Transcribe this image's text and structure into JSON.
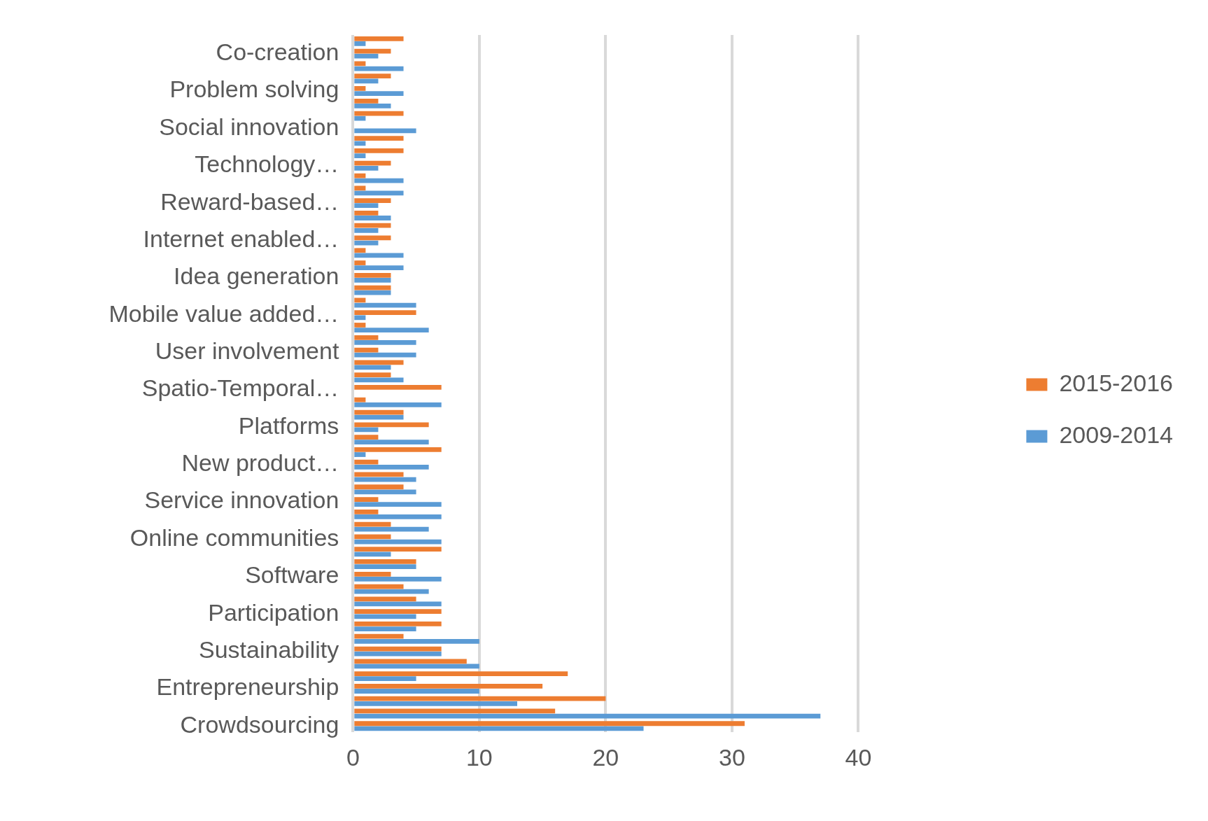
{
  "chart_data": {
    "type": "bar",
    "orientation": "horizontal",
    "categories": [
      null,
      "Co-creation",
      null,
      null,
      "Problem solving",
      null,
      null,
      "Social innovation",
      null,
      null,
      "Technology…",
      null,
      null,
      "Reward-based…",
      null,
      null,
      "Internet enabled…",
      null,
      null,
      "Idea generation",
      null,
      null,
      "Mobile value added…",
      null,
      null,
      "User involvement",
      null,
      null,
      "Spatio-Temporal…",
      null,
      null,
      "Platforms",
      null,
      null,
      "New product…",
      null,
      null,
      "Service innovation",
      null,
      null,
      "Online communities",
      null,
      null,
      "Software",
      null,
      null,
      "Participation",
      null,
      null,
      "Sustainability",
      null,
      null,
      "Entrepreneurship",
      null,
      null,
      "Crowdsourcing"
    ],
    "series": [
      {
        "name": "2015-2016",
        "color": "#ed7d31",
        "values": [
          4,
          3,
          1,
          3,
          1,
          2,
          4,
          0,
          4,
          4,
          3,
          1,
          1,
          3,
          2,
          3,
          3,
          1,
          1,
          3,
          3,
          1,
          5,
          1,
          2,
          2,
          4,
          3,
          7,
          1,
          4,
          6,
          2,
          7,
          2,
          4,
          4,
          2,
          2,
          3,
          3,
          7,
          5,
          3,
          4,
          5,
          7,
          7,
          4,
          7,
          9,
          17,
          15,
          20,
          16,
          31
        ]
      },
      {
        "name": "2009-2014",
        "color": "#5b9bd5",
        "values": [
          1,
          2,
          4,
          2,
          4,
          3,
          1,
          5,
          1,
          1,
          2,
          4,
          4,
          2,
          3,
          2,
          2,
          4,
          4,
          3,
          3,
          5,
          1,
          6,
          5,
          5,
          3,
          4,
          0,
          7,
          4,
          2,
          6,
          1,
          6,
          5,
          5,
          7,
          7,
          6,
          7,
          3,
          5,
          7,
          6,
          7,
          5,
          5,
          10,
          7,
          10,
          5,
          10,
          13,
          37,
          23
        ]
      }
    ],
    "xlim": [
      0,
      40
    ],
    "xticks": [
      0,
      10,
      20,
      30,
      40
    ],
    "grid": "x",
    "legend": "right"
  }
}
